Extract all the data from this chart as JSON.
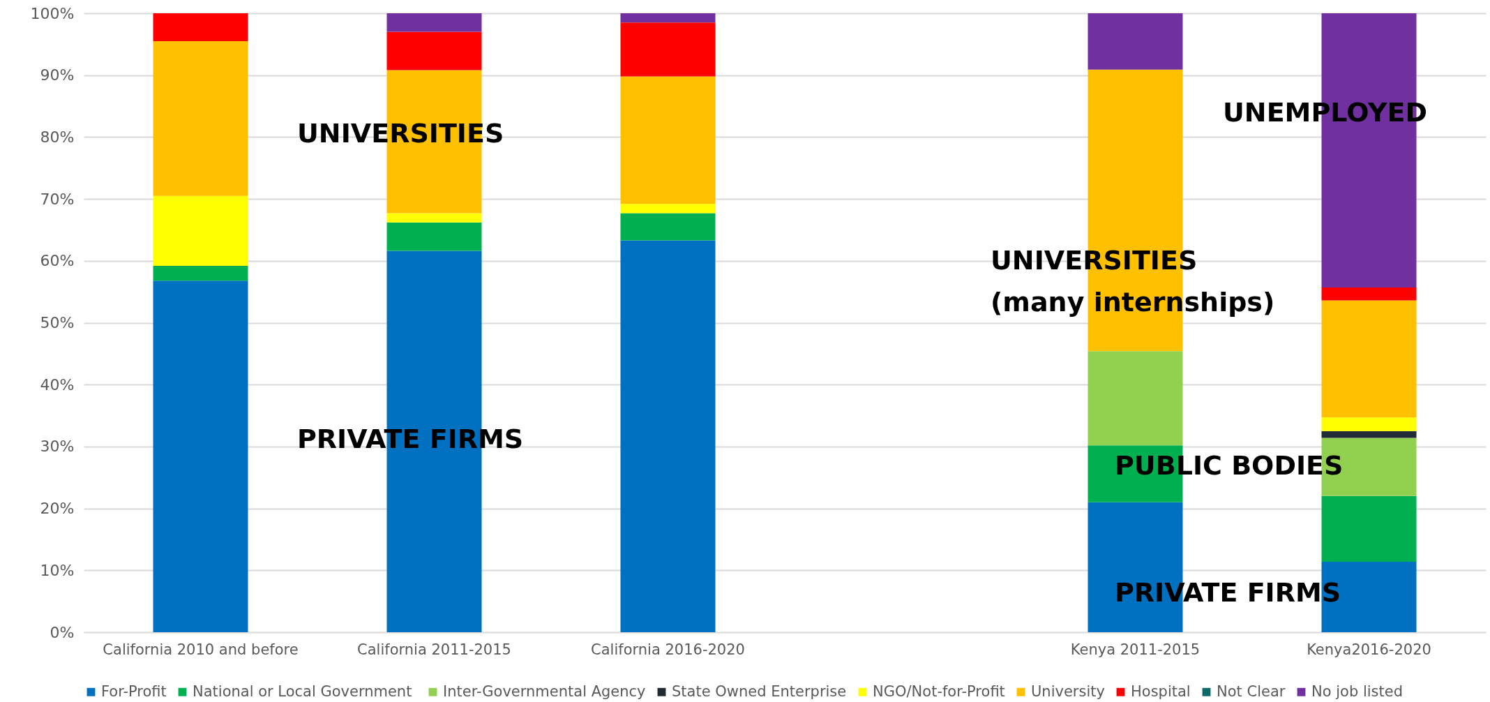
{
  "chart_data": {
    "type": "bar",
    "stacked": true,
    "categories": [
      "California 2010 and before",
      "California 2011-2015",
      "California 2016-2020",
      null,
      "Kenya 2011-2015",
      "Kenya2016-2020"
    ],
    "series": [
      {
        "name": "For-Profit",
        "color": "#0070c0",
        "values": [
          56.8,
          61.6,
          63.3,
          null,
          21.0,
          11.4
        ]
      },
      {
        "name": "National or Local  Government",
        "color": "#00b050",
        "values": [
          2.4,
          4.6,
          4.4,
          null,
          9.2,
          10.6
        ]
      },
      {
        "name": "Inter-Governmental Agency",
        "color": "#92d050",
        "values": [
          null,
          null,
          null,
          null,
          15.2,
          9.4
        ]
      },
      {
        "name": "State Owned Enterprise",
        "color": "#222a35",
        "values": [
          null,
          null,
          null,
          null,
          null,
          1.1
        ]
      },
      {
        "name": "NGO/Not-for-Profit",
        "color": "#ffff00",
        "values": [
          11.3,
          1.5,
          1.5,
          null,
          null,
          2.2
        ]
      },
      {
        "name": "University",
        "color": "#ffc000",
        "values": [
          25.0,
          23.1,
          20.6,
          null,
          45.5,
          18.9
        ]
      },
      {
        "name": "Hospital",
        "color": "#ff0000",
        "values": [
          4.5,
          6.2,
          8.7,
          null,
          null,
          2.1
        ]
      },
      {
        "name": "Not Clear",
        "color": "#0e6a6a",
        "values": [
          null,
          null,
          null,
          null,
          null,
          null
        ]
      },
      {
        "name": "No job listed",
        "color": "#7030a0",
        "values": [
          null,
          3.0,
          1.5,
          null,
          9.1,
          44.3
        ]
      }
    ],
    "ylim": [
      0,
      100
    ],
    "yticks": [
      {
        "value": 0,
        "label": "0%"
      },
      {
        "value": 10,
        "label": "10%"
      },
      {
        "value": 20,
        "label": "20%"
      },
      {
        "value": 30,
        "label": "30%"
      },
      {
        "value": 40,
        "label": "40%"
      },
      {
        "value": 50,
        "label": "50%"
      },
      {
        "value": 60,
        "label": "60%"
      },
      {
        "value": 70,
        "label": "70%"
      },
      {
        "value": 80,
        "label": "80%"
      },
      {
        "value": 90,
        "label": "90%"
      },
      {
        "value": 100,
        "label": "100%"
      }
    ],
    "grid": "y",
    "legend": "bottom",
    "annotations": [
      "UNIVERSITIES",
      "PRIVATE FIRMS",
      "UNIVERSITIES\n(many internships)",
      "UNEMPLOYED",
      "PUBLIC BODIES",
      "PRIVATE FIRMS"
    ]
  }
}
